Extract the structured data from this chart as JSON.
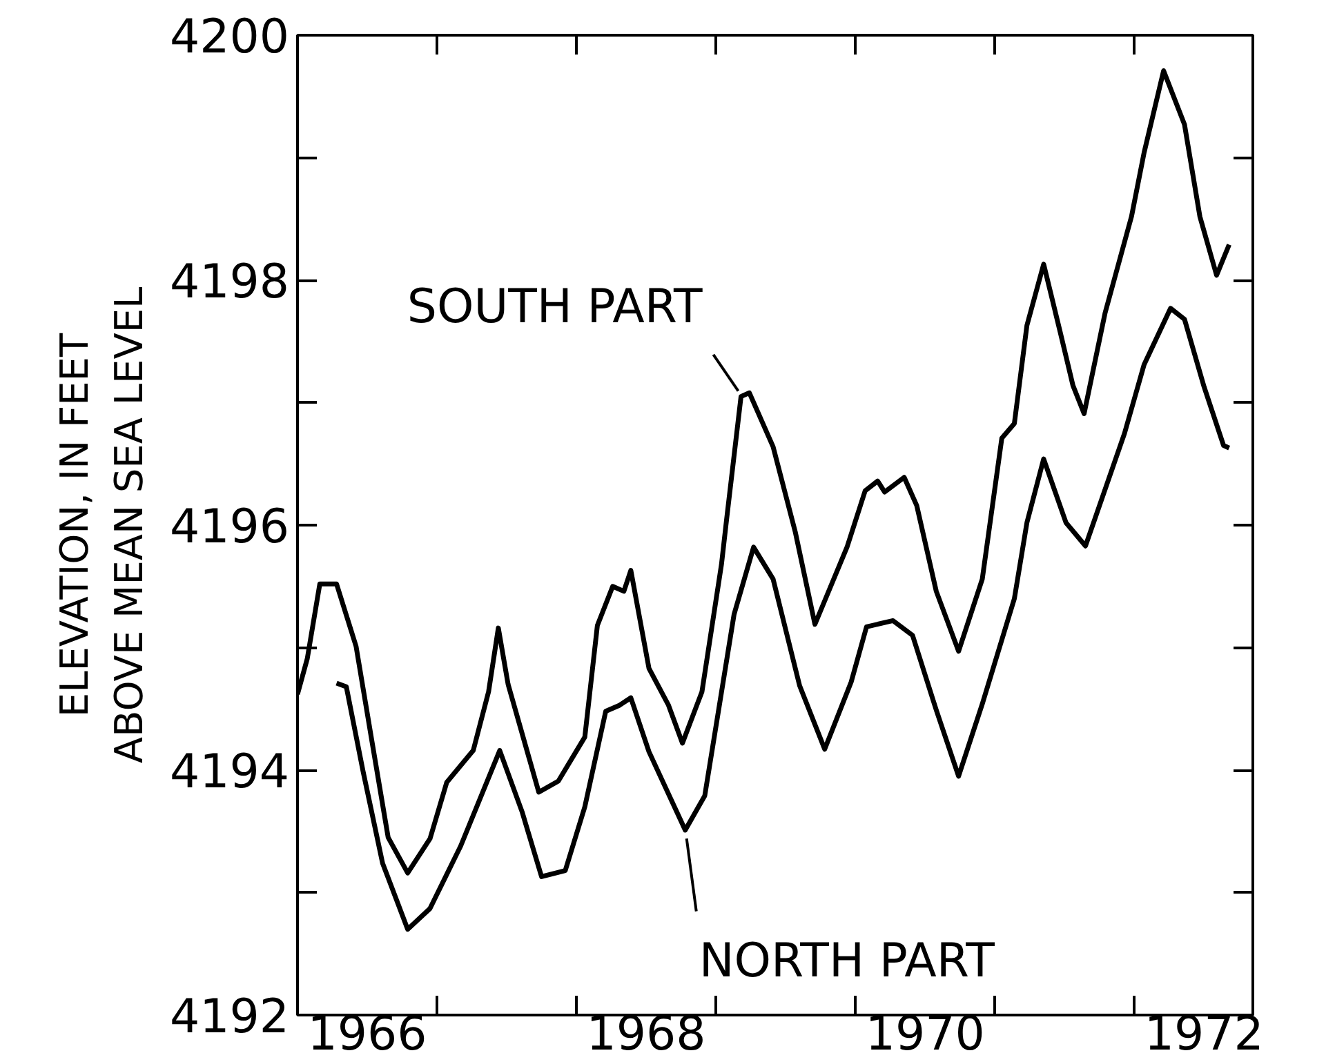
{
  "chart_data": {
    "type": "line",
    "ylabel": "ELEVATION, IN FEET\nABOVE MEAN SEA LEVEL",
    "xlim": [
      1966,
      1972.85
    ],
    "ylim": [
      4192,
      4200
    ],
    "xticks": [
      {
        "value": 1966.5,
        "label": "1966"
      },
      {
        "value": 1967,
        "label": null
      },
      {
        "value": 1968,
        "label": null
      },
      {
        "value": 1968.5,
        "label": "1968"
      },
      {
        "value": 1969,
        "label": null
      },
      {
        "value": 1970,
        "label": null
      },
      {
        "value": 1970.5,
        "label": "1970"
      },
      {
        "value": 1971,
        "label": null
      },
      {
        "value": 1972,
        "label": null
      },
      {
        "value": 1972.5,
        "label": "1972"
      }
    ],
    "yticks": [
      4192,
      {
        "value": 4193,
        "label": null
      },
      4194,
      {
        "value": 4195,
        "label": null
      },
      4196,
      {
        "value": 4197,
        "label": null
      },
      4198,
      {
        "value": 4199,
        "label": null
      },
      4200
    ],
    "grid": false,
    "marker": "none",
    "line_style": "solid",
    "series": [
      {
        "color": "#000000",
        "x": [
          1966.0,
          1966.07,
          1966.16,
          1966.28,
          1966.42,
          1966.53,
          1966.65,
          1966.79,
          1966.95,
          1967.07,
          1967.26,
          1967.37,
          1967.44,
          1967.51,
          1967.73,
          1967.87,
          1968.06,
          1968.15,
          1968.26,
          1968.34,
          1968.39,
          1968.52,
          1968.66,
          1968.76,
          1968.9,
          1969.04,
          1969.08,
          1969.18,
          1969.24,
          1969.41,
          1969.57,
          1969.71,
          1969.94,
          1970.07,
          1970.16,
          1970.21,
          1970.35,
          1970.44,
          1970.58,
          1970.74,
          1970.91,
          1971.05,
          1971.14,
          1971.23,
          1971.35,
          1971.47,
          1971.56,
          1971.64,
          1971.79,
          1971.98,
          1972.07,
          1972.21,
          1972.36,
          1972.47,
          1972.59,
          1972.68
        ],
        "values": [
          4194.62,
          4194.91,
          4195.52,
          4195.52,
          4195.01,
          4194.26,
          4193.45,
          4193.16,
          4193.44,
          4193.9,
          4194.16,
          4194.64,
          4195.16,
          4194.7,
          4193.82,
          4193.91,
          4194.27,
          4195.18,
          4195.5,
          4195.46,
          4195.63,
          4194.83,
          4194.53,
          4194.22,
          4194.64,
          4195.68,
          4196.08,
          4197.05,
          4197.08,
          4196.64,
          4195.94,
          4195.19,
          4195.82,
          4196.28,
          4196.36,
          4196.27,
          4196.39,
          4196.16,
          4195.46,
          4194.97,
          4195.56,
          4196.71,
          4196.83,
          4197.63,
          4198.13,
          4197.57,
          4197.14,
          4196.91,
          4197.73,
          4198.52,
          4199.04,
          4199.71,
          4199.27,
          4198.52,
          4198.04,
          4198.29
        ]
      },
      {
        "color": "#000000",
        "x": [
          1966.28,
          1966.35,
          1966.47,
          1966.61,
          1966.79,
          1966.95,
          1967.17,
          1967.45,
          1967.61,
          1967.75,
          1967.92,
          1968.06,
          1968.21,
          1968.31,
          1968.39,
          1968.52,
          1968.78,
          1968.92,
          1969.13,
          1969.27,
          1969.41,
          1969.6,
          1969.78,
          1969.97,
          1970.08,
          1970.27,
          1970.41,
          1970.58,
          1970.74,
          1970.91,
          1971.14,
          1971.23,
          1971.35,
          1971.51,
          1971.65,
          1971.93,
          1972.07,
          1972.26,
          1972.36,
          1972.5,
          1972.64,
          1972.68
        ],
        "values": [
          4194.71,
          4194.68,
          4193.99,
          4193.24,
          4192.7,
          4192.87,
          4193.38,
          4194.16,
          4193.66,
          4193.13,
          4193.18,
          4193.7,
          4194.48,
          4194.53,
          4194.59,
          4194.15,
          4193.51,
          4193.79,
          4195.27,
          4195.82,
          4195.56,
          4194.69,
          4194.17,
          4194.72,
          4195.17,
          4195.22,
          4195.1,
          4194.49,
          4193.95,
          4194.54,
          4195.4,
          4196.02,
          4196.54,
          4196.02,
          4195.83,
          4196.75,
          4197.31,
          4197.77,
          4197.68,
          4197.13,
          4196.65,
          4196.63
        ]
      }
    ],
    "annotations": [
      {
        "text": "SOUTH PART",
        "x": 1969.2,
        "y": 4197.05
      },
      {
        "text": "NORTH PART",
        "x": 1968.78,
        "y": 4193.51
      }
    ]
  }
}
